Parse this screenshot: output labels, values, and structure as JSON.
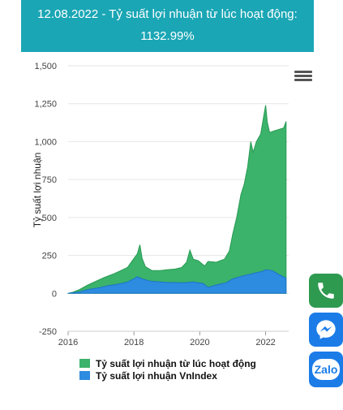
{
  "header": {
    "line1": "12.08.2022 - Tỷ suất lợi nhuận từ lúc hoạt động:",
    "line2": "1132.99%"
  },
  "menu": {
    "icon": "hamburger-menu-icon"
  },
  "floating_buttons": {
    "phone": {
      "icon": "phone-icon",
      "color": "#2e9a4f"
    },
    "messenger": {
      "icon": "messenger-icon",
      "color": "#1b7ce8"
    },
    "zalo": {
      "label": "Zalo",
      "color": "#1b7ce8"
    }
  },
  "chart_data": {
    "type": "area",
    "title": "",
    "xlabel": "",
    "ylabel": "Tỷ suất lợi nhuận",
    "xlim": [
      2016,
      2022.7
    ],
    "ylim": [
      -250,
      1500
    ],
    "yticks": [
      -250,
      0,
      250,
      500,
      750,
      1000,
      1250,
      1500
    ],
    "ytick_labels": [
      "-250",
      "0",
      "250",
      "500",
      "750",
      "1,000",
      "1,250",
      "1,500"
    ],
    "xticks": [
      2016,
      2018,
      2020,
      2022
    ],
    "xtick_labels": [
      "2016",
      "2018",
      "2020",
      "2022"
    ],
    "grid": true,
    "legend_position": "bottom",
    "series": [
      {
        "name": "Tỷ suất lợi nhuận từ lúc hoạt động",
        "color": "#3bb36a",
        "points": [
          [
            2016.0,
            0
          ],
          [
            2016.15,
            8
          ],
          [
            2016.35,
            25
          ],
          [
            2016.6,
            55
          ],
          [
            2016.85,
            80
          ],
          [
            2017.1,
            105
          ],
          [
            2017.35,
            125
          ],
          [
            2017.6,
            150
          ],
          [
            2017.8,
            170
          ],
          [
            2017.95,
            215
          ],
          [
            2018.1,
            260
          ],
          [
            2018.18,
            320
          ],
          [
            2018.25,
            230
          ],
          [
            2018.35,
            175
          ],
          [
            2018.55,
            150
          ],
          [
            2018.8,
            150
          ],
          [
            2019.0,
            155
          ],
          [
            2019.25,
            160
          ],
          [
            2019.45,
            170
          ],
          [
            2019.6,
            205
          ],
          [
            2019.7,
            285
          ],
          [
            2019.8,
            225
          ],
          [
            2019.95,
            215
          ],
          [
            2020.15,
            180
          ],
          [
            2020.25,
            210
          ],
          [
            2020.5,
            205
          ],
          [
            2020.75,
            225
          ],
          [
            2020.9,
            280
          ],
          [
            2021.0,
            390
          ],
          [
            2021.12,
            500
          ],
          [
            2021.25,
            650
          ],
          [
            2021.35,
            720
          ],
          [
            2021.45,
            830
          ],
          [
            2021.55,
            1000
          ],
          [
            2021.62,
            930
          ],
          [
            2021.72,
            1000
          ],
          [
            2021.85,
            1050
          ],
          [
            2021.95,
            1180
          ],
          [
            2022.0,
            1240
          ],
          [
            2022.05,
            1130
          ],
          [
            2022.12,
            1060
          ],
          [
            2022.25,
            1070
          ],
          [
            2022.4,
            1080
          ],
          [
            2022.55,
            1090
          ],
          [
            2022.62,
            1133
          ]
        ]
      },
      {
        "name": "Tỷ suất lợi nhuận VnIndex",
        "color": "#2d8be0",
        "points": [
          [
            2016.0,
            0
          ],
          [
            2016.3,
            8
          ],
          [
            2016.6,
            25
          ],
          [
            2016.9,
            35
          ],
          [
            2017.2,
            50
          ],
          [
            2017.5,
            60
          ],
          [
            2017.8,
            75
          ],
          [
            2018.0,
            95
          ],
          [
            2018.1,
            110
          ],
          [
            2018.25,
            95
          ],
          [
            2018.5,
            80
          ],
          [
            2018.8,
            75
          ],
          [
            2019.0,
            72
          ],
          [
            2019.5,
            70
          ],
          [
            2019.8,
            75
          ],
          [
            2020.1,
            65
          ],
          [
            2020.25,
            40
          ],
          [
            2020.5,
            55
          ],
          [
            2020.8,
            70
          ],
          [
            2021.0,
            95
          ],
          [
            2021.3,
            115
          ],
          [
            2021.6,
            130
          ],
          [
            2021.9,
            145
          ],
          [
            2022.0,
            155
          ],
          [
            2022.2,
            150
          ],
          [
            2022.4,
            125
          ],
          [
            2022.62,
            100
          ]
        ]
      }
    ]
  }
}
